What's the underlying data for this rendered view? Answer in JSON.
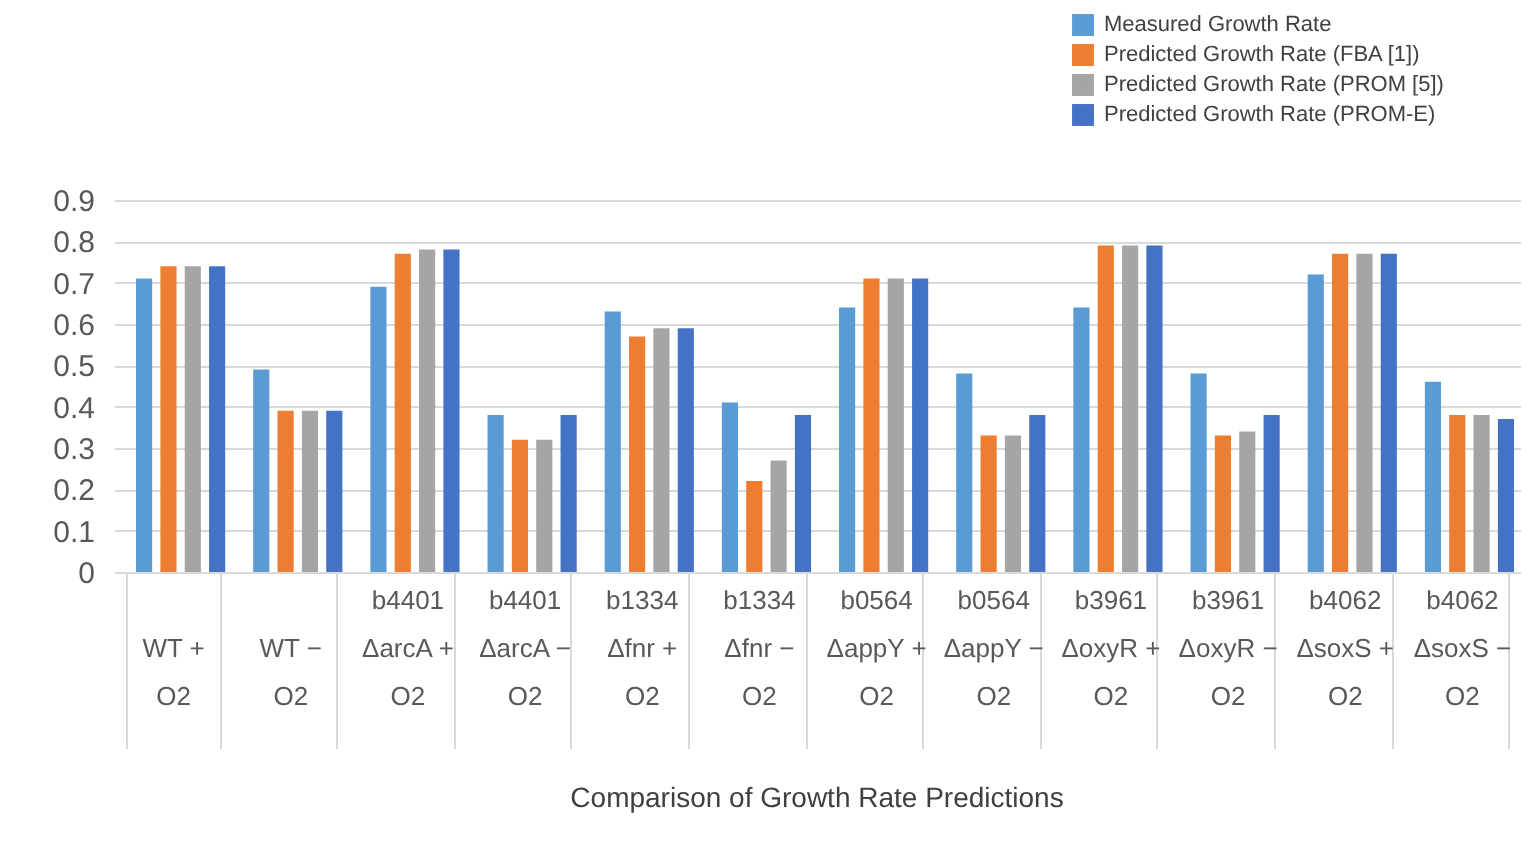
{
  "chart_data": {
    "type": "bar",
    "title": "Comparison of Growth Rate Predictions",
    "categories": [
      "WT +\nO2",
      "WT −\nO2",
      "b4401\nΔarcA +\nO2",
      "b4401\nΔarcA −\nO2",
      "b1334\nΔfnr +\nO2",
      "b1334\nΔfnr −\nO2",
      "b0564\nΔappY +\nO2",
      "b0564\nΔappY −\nO2",
      "b3961\nΔoxyR +\nO2",
      "b3961\nΔoxyR −\nO2",
      "b4062\nΔsoxS +\nO2",
      "b4062\nΔsoxS −\nO2"
    ],
    "series": [
      {
        "name": "Measured Growth Rate",
        "color": "#5b9bd5",
        "values": [
          0.71,
          0.49,
          0.69,
          0.38,
          0.63,
          0.41,
          0.64,
          0.48,
          0.64,
          0.48,
          0.72,
          0.46
        ]
      },
      {
        "name": "Predicted Growth Rate (FBA [1])",
        "color": "#ed7d31",
        "values": [
          0.74,
          0.39,
          0.77,
          0.32,
          0.57,
          0.22,
          0.71,
          0.33,
          0.79,
          0.33,
          0.77,
          0.38
        ]
      },
      {
        "name": "Predicted Growth Rate (PROM [5])",
        "color": "#a5a5a5",
        "values": [
          0.74,
          0.39,
          0.78,
          0.32,
          0.59,
          0.27,
          0.71,
          0.33,
          0.79,
          0.34,
          0.77,
          0.38
        ]
      },
      {
        "name": "Predicted Growth Rate (PROM-E)",
        "color": "#4472c4",
        "values": [
          0.74,
          0.39,
          0.78,
          0.38,
          0.59,
          0.38,
          0.71,
          0.38,
          0.79,
          0.38,
          0.77,
          0.37
        ]
      }
    ],
    "ylim": [
      0,
      0.9
    ],
    "yticks": [
      0,
      0.1,
      0.2,
      0.3,
      0.4,
      0.5,
      0.6,
      0.7,
      0.8,
      0.9
    ],
    "grid": "y",
    "legend": "top right"
  }
}
